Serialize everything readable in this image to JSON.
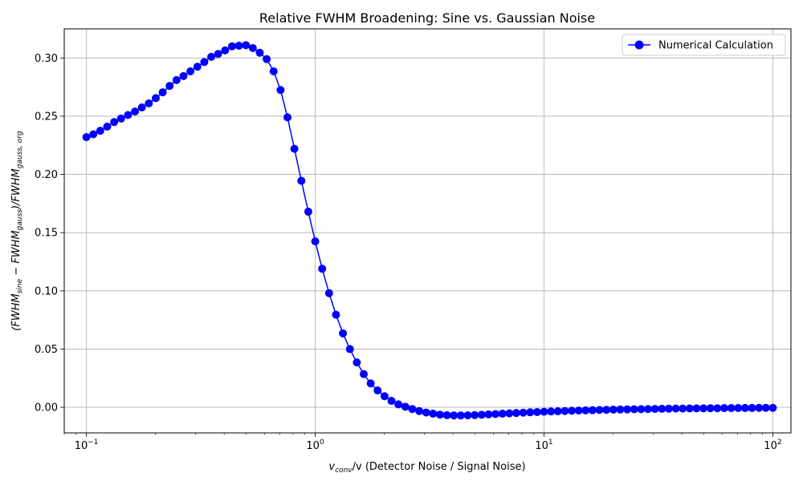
{
  "chart_data": {
    "type": "line",
    "title": "Relative FWHM Broadening: Sine vs. Gaussian Noise",
    "xlabel": {
      "main": "v",
      "sub": "conv",
      "tail": "/v (Detector Noise / Signal Noise)"
    },
    "ylabel": {
      "parts": [
        {
          "t": "(FWHM",
          "s": ""
        },
        {
          "t": "sine",
          "s": "sub"
        },
        {
          "t": " − FWHM",
          "s": ""
        },
        {
          "t": "gauss",
          "s": "sub"
        },
        {
          "t": ")/FWHM",
          "s": ""
        },
        {
          "t": "gauss, org",
          "s": "sub"
        }
      ]
    },
    "x_scale": "log",
    "xlim": [
      0.08,
      120
    ],
    "ylim": [
      -0.022,
      0.325
    ],
    "x_ticks": [
      {
        "value": 0.1,
        "base": "10",
        "exp": "−1"
      },
      {
        "value": 1,
        "base": "10",
        "exp": "0"
      },
      {
        "value": 10,
        "base": "10",
        "exp": "1"
      },
      {
        "value": 100,
        "base": "10",
        "exp": "2"
      }
    ],
    "y_ticks": [
      {
        "value": 0.0,
        "label": "0.00"
      },
      {
        "value": 0.05,
        "label": "0.05"
      },
      {
        "value": 0.1,
        "label": "0.10"
      },
      {
        "value": 0.15,
        "label": "0.15"
      },
      {
        "value": 0.2,
        "label": "0.20"
      },
      {
        "value": 0.25,
        "label": "0.25"
      },
      {
        "value": 0.3,
        "label": "0.30"
      }
    ],
    "grid": true,
    "legend_position": "top-right",
    "series": [
      {
        "name": "Numerical Calculation",
        "color": "#0000ff",
        "marker": "circle",
        "x_range": [
          0.1,
          100
        ],
        "point_count": 100,
        "spacing": "log",
        "y": [
          0.232,
          0.2345,
          0.2375,
          0.241,
          0.245,
          0.248,
          0.251,
          0.254,
          0.2575,
          0.261,
          0.2655,
          0.2705,
          0.276,
          0.281,
          0.2845,
          0.2885,
          0.2925,
          0.2965,
          0.301,
          0.3035,
          0.3065,
          0.31,
          0.3105,
          0.311,
          0.3085,
          0.3045,
          0.299,
          0.2885,
          0.2725,
          0.249,
          0.222,
          0.1945,
          0.168,
          0.1425,
          0.119,
          0.098,
          0.0795,
          0.0635,
          0.05,
          0.0385,
          0.0285,
          0.0205,
          0.0145,
          0.0095,
          0.0055,
          0.0025,
          0.0005,
          -0.0015,
          -0.0032,
          -0.0045,
          -0.0055,
          -0.0063,
          -0.0068,
          -0.007,
          -0.007,
          -0.0069,
          -0.0067,
          -0.0064,
          -0.0061,
          -0.0058,
          -0.0055,
          -0.0052,
          -0.0049,
          -0.0046,
          -0.0043,
          -0.0041,
          -0.0038,
          -0.0036,
          -0.0034,
          -0.0032,
          -0.003,
          -0.0028,
          -0.0026,
          -0.0025,
          -0.0023,
          -0.0022,
          -0.002,
          -0.0019,
          -0.0018,
          -0.0017,
          -0.0016,
          -0.0015,
          -0.0014,
          -0.0013,
          -0.0012,
          -0.0011,
          -0.0011,
          -0.001,
          -0.0009,
          -0.0009,
          -0.0008,
          -0.0008,
          -0.0007,
          -0.0007,
          -0.0006,
          -0.0006,
          -0.0006,
          -0.0005,
          -0.0005,
          -0.0005
        ]
      }
    ]
  }
}
